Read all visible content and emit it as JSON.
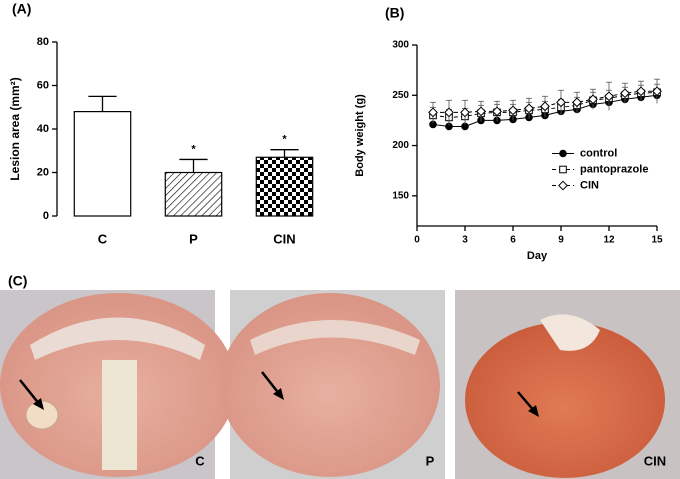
{
  "chart_data": [
    {
      "type": "bar",
      "panel": "(A)",
      "ylabel": "Lesion area (mm²)",
      "categories": [
        "C",
        "P",
        "CIN"
      ],
      "values": [
        48,
        20,
        27
      ],
      "errors": [
        7,
        6,
        3.5
      ],
      "significance": [
        null,
        "*",
        "*"
      ],
      "fills": [
        "#ffffff",
        "hatch",
        "checker"
      ],
      "ylim": [
        0,
        80
      ],
      "yticks": [
        0,
        20,
        40,
        60,
        80
      ]
    },
    {
      "type": "line",
      "panel": "(B)",
      "xlabel": "Day",
      "ylabel": "Body weight (g)",
      "x": [
        1,
        2,
        3,
        4,
        5,
        6,
        7,
        8,
        9,
        10,
        11,
        12,
        13,
        14,
        15
      ],
      "series": [
        {
          "name": "control",
          "color": "#000000",
          "marker": "circle",
          "dash": false,
          "values": [
            221,
            219,
            219,
            225,
            225,
            226,
            228,
            230,
            234,
            236,
            241,
            243,
            246,
            248,
            250
          ],
          "errors": [
            2,
            2,
            2,
            2,
            2,
            2,
            2,
            2,
            2,
            2,
            2,
            2,
            2,
            2,
            2
          ]
        },
        {
          "name": "pantoprazole",
          "color": "#000000",
          "marker": "square",
          "dash": true,
          "values": [
            230,
            228,
            229,
            232,
            233,
            233,
            235,
            236,
            238,
            240,
            245,
            247,
            250,
            252,
            253
          ],
          "errors": [
            8,
            8,
            8,
            8,
            8,
            8,
            8,
            8,
            8,
            8,
            8,
            8,
            8,
            8,
            8
          ]
        },
        {
          "name": "CIN",
          "color": "#000000",
          "marker": "diamond",
          "dash": true,
          "values": [
            233,
            233,
            233,
            234,
            234,
            235,
            237,
            239,
            243,
            243,
            246,
            249,
            252,
            254,
            254
          ],
          "errors": [
            10,
            12,
            12,
            10,
            10,
            10,
            10,
            10,
            12,
            10,
            10,
            14,
            10,
            10,
            12
          ]
        }
      ],
      "xlim": [
        0,
        15
      ],
      "xticks": [
        0,
        3,
        6,
        9,
        12,
        15
      ],
      "ylim": [
        120,
        300
      ],
      "yticks": [
        150,
        200,
        250,
        300
      ],
      "legend": "center right"
    }
  ],
  "photos": {
    "panel": "(C)",
    "labels": [
      "C",
      "P",
      "CIN"
    ]
  }
}
